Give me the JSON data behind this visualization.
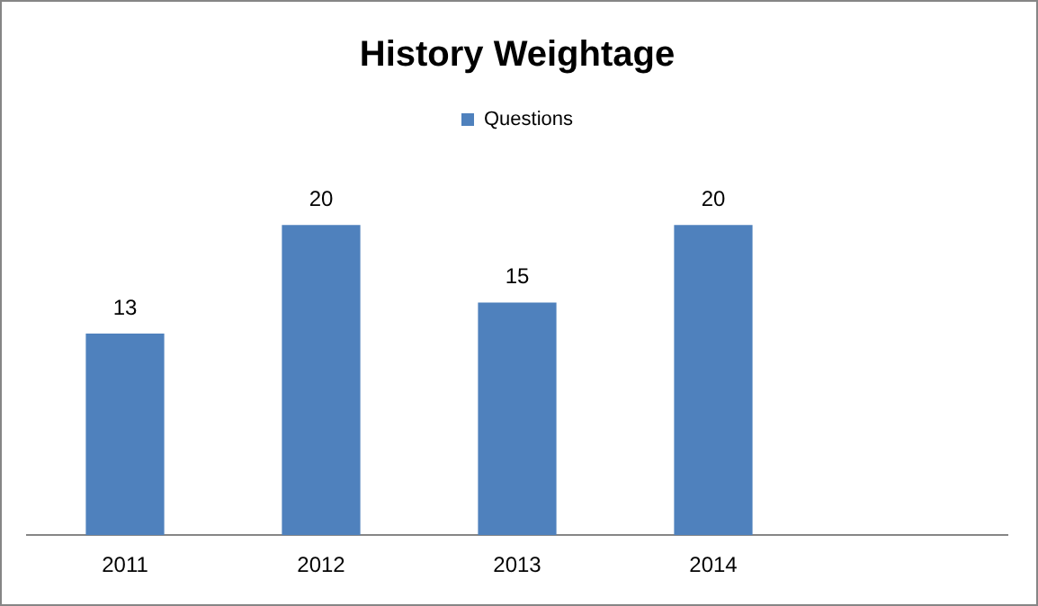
{
  "chart_data": {
    "type": "bar",
    "title": "History Weightage",
    "categories": [
      "2011",
      "2012",
      "2013",
      "2014",
      null
    ],
    "series": [
      {
        "name": "Questions",
        "color": "#4f81bd",
        "values": [
          13,
          20,
          15,
          20,
          null
        ]
      }
    ],
    "data_labels": true,
    "legend": "top",
    "grid": false
  }
}
